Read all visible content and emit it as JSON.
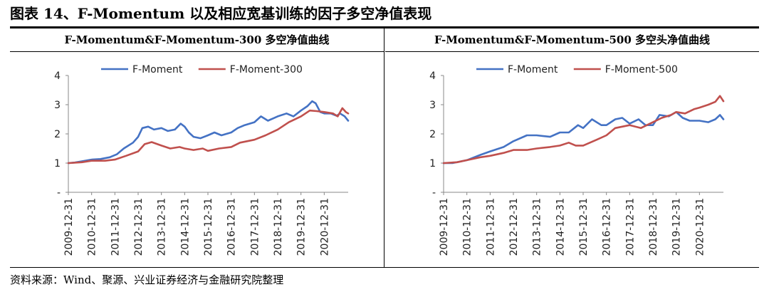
{
  "figure_title": "图表 14、F-Momentum 以及相应宽基训练的因子多空净值表现",
  "source_note": "资料来源：Wind、聚源、兴业证券经济与金融研究院整理",
  "chart_data": [
    {
      "type": "line",
      "title": "F-Momentum&F-Momentum-300 多空净值曲线",
      "xlabel": "",
      "ylabel": "",
      "ylim": [
        0,
        4
      ],
      "yticks": [
        "-",
        "1",
        "2",
        "3",
        "4"
      ],
      "x_start": 2009.92,
      "x_end": 2021.95,
      "xtick_labels": [
        "2009-12-31",
        "2010-12-31",
        "2011-12-31",
        "2012-12-31",
        "2013-12-31",
        "2014-12-31",
        "2015-12-31",
        "2016-12-31",
        "2017-12-31",
        "2018-12-31",
        "2019-12-31",
        "2020-12-31"
      ],
      "grid": false,
      "legend": "top",
      "series": [
        {
          "name": "F-Moment",
          "color": "#4472C4",
          "points": [
            [
              2009.92,
              1.0
            ],
            [
              2010.2,
              1.02
            ],
            [
              2010.5,
              1.06
            ],
            [
              2010.92,
              1.12
            ],
            [
              2011.3,
              1.14
            ],
            [
              2011.7,
              1.2
            ],
            [
              2012.0,
              1.3
            ],
            [
              2012.3,
              1.5
            ],
            [
              2012.7,
              1.7
            ],
            [
              2012.92,
              1.9
            ],
            [
              2013.1,
              2.2
            ],
            [
              2013.35,
              2.25
            ],
            [
              2013.6,
              2.15
            ],
            [
              2013.92,
              2.2
            ],
            [
              2014.2,
              2.1
            ],
            [
              2014.5,
              2.15
            ],
            [
              2014.75,
              2.35
            ],
            [
              2014.92,
              2.25
            ],
            [
              2015.1,
              2.05
            ],
            [
              2015.3,
              1.9
            ],
            [
              2015.6,
              1.85
            ],
            [
              2015.92,
              1.95
            ],
            [
              2016.2,
              2.05
            ],
            [
              2016.5,
              1.95
            ],
            [
              2016.92,
              2.05
            ],
            [
              2017.2,
              2.2
            ],
            [
              2017.5,
              2.3
            ],
            [
              2017.92,
              2.4
            ],
            [
              2018.2,
              2.6
            ],
            [
              2018.5,
              2.45
            ],
            [
              2018.92,
              2.6
            ],
            [
              2019.3,
              2.7
            ],
            [
              2019.6,
              2.6
            ],
            [
              2019.92,
              2.8
            ],
            [
              2020.2,
              2.95
            ],
            [
              2020.4,
              3.12
            ],
            [
              2020.55,
              3.05
            ],
            [
              2020.75,
              2.75
            ],
            [
              2020.92,
              2.7
            ],
            [
              2021.2,
              2.7
            ],
            [
              2021.45,
              2.62
            ],
            [
              2021.6,
              2.7
            ],
            [
              2021.8,
              2.6
            ],
            [
              2021.95,
              2.45
            ]
          ]
        },
        {
          "name": "F-Moment-300",
          "color": "#C0504D",
          "points": [
            [
              2009.92,
              1.0
            ],
            [
              2010.5,
              1.03
            ],
            [
              2010.92,
              1.08
            ],
            [
              2011.5,
              1.08
            ],
            [
              2011.92,
              1.12
            ],
            [
              2012.4,
              1.25
            ],
            [
              2012.92,
              1.4
            ],
            [
              2013.2,
              1.65
            ],
            [
              2013.5,
              1.72
            ],
            [
              2013.92,
              1.6
            ],
            [
              2014.3,
              1.5
            ],
            [
              2014.7,
              1.55
            ],
            [
              2014.92,
              1.5
            ],
            [
              2015.3,
              1.45
            ],
            [
              2015.7,
              1.5
            ],
            [
              2015.92,
              1.42
            ],
            [
              2016.4,
              1.5
            ],
            [
              2016.92,
              1.55
            ],
            [
              2017.3,
              1.7
            ],
            [
              2017.92,
              1.8
            ],
            [
              2018.4,
              1.95
            ],
            [
              2018.92,
              2.15
            ],
            [
              2019.4,
              2.4
            ],
            [
              2019.92,
              2.6
            ],
            [
              2020.3,
              2.8
            ],
            [
              2020.6,
              2.78
            ],
            [
              2020.92,
              2.75
            ],
            [
              2021.3,
              2.7
            ],
            [
              2021.5,
              2.6
            ],
            [
              2021.7,
              2.88
            ],
            [
              2021.85,
              2.75
            ],
            [
              2021.95,
              2.7
            ]
          ]
        }
      ]
    },
    {
      "type": "line",
      "title": "F-Momentum&F-Momentum-500 多空头净值曲线",
      "xlabel": "",
      "ylabel": "",
      "ylim": [
        0,
        4
      ],
      "yticks": [
        "-",
        "1",
        "2",
        "3",
        "4"
      ],
      "x_start": 2009.92,
      "x_end": 2021.95,
      "xtick_labels": [
        "2009-12-31",
        "2010-12-31",
        "2011-12-31",
        "2012-12-31",
        "2013-12-31",
        "2014-12-31",
        "2015-12-31",
        "2016-12-31",
        "2017-12-31",
        "2018-12-31",
        "2019-12-31",
        "2020-12-31"
      ],
      "grid": false,
      "legend": "top",
      "series": [
        {
          "name": "F-Moment",
          "color": "#4472C4",
          "points": [
            [
              2009.92,
              1.0
            ],
            [
              2010.3,
              1.0
            ],
            [
              2010.92,
              1.1
            ],
            [
              2011.5,
              1.28
            ],
            [
              2011.92,
              1.4
            ],
            [
              2012.5,
              1.55
            ],
            [
              2012.92,
              1.75
            ],
            [
              2013.5,
              1.95
            ],
            [
              2013.92,
              1.95
            ],
            [
              2014.5,
              1.9
            ],
            [
              2014.92,
              2.05
            ],
            [
              2015.3,
              2.05
            ],
            [
              2015.7,
              2.3
            ],
            [
              2015.92,
              2.2
            ],
            [
              2016.3,
              2.5
            ],
            [
              2016.7,
              2.3
            ],
            [
              2016.92,
              2.3
            ],
            [
              2017.3,
              2.5
            ],
            [
              2017.6,
              2.55
            ],
            [
              2017.92,
              2.35
            ],
            [
              2018.3,
              2.5
            ],
            [
              2018.6,
              2.3
            ],
            [
              2018.92,
              2.3
            ],
            [
              2019.2,
              2.65
            ],
            [
              2019.6,
              2.6
            ],
            [
              2019.92,
              2.75
            ],
            [
              2020.2,
              2.55
            ],
            [
              2020.5,
              2.45
            ],
            [
              2020.92,
              2.45
            ],
            [
              2021.3,
              2.4
            ],
            [
              2021.6,
              2.5
            ],
            [
              2021.8,
              2.65
            ],
            [
              2021.95,
              2.5
            ]
          ]
        },
        {
          "name": "F-Moment-500",
          "color": "#C0504D",
          "points": [
            [
              2009.92,
              1.0
            ],
            [
              2010.5,
              1.03
            ],
            [
              2010.92,
              1.1
            ],
            [
              2011.5,
              1.2
            ],
            [
              2011.92,
              1.25
            ],
            [
              2012.5,
              1.35
            ],
            [
              2012.92,
              1.45
            ],
            [
              2013.5,
              1.45
            ],
            [
              2013.92,
              1.5
            ],
            [
              2014.5,
              1.55
            ],
            [
              2014.92,
              1.6
            ],
            [
              2015.3,
              1.7
            ],
            [
              2015.6,
              1.6
            ],
            [
              2015.92,
              1.6
            ],
            [
              2016.5,
              1.8
            ],
            [
              2016.92,
              1.95
            ],
            [
              2017.3,
              2.2
            ],
            [
              2017.92,
              2.3
            ],
            [
              2018.4,
              2.2
            ],
            [
              2018.92,
              2.4
            ],
            [
              2019.3,
              2.55
            ],
            [
              2019.7,
              2.65
            ],
            [
              2019.92,
              2.75
            ],
            [
              2020.3,
              2.7
            ],
            [
              2020.7,
              2.85
            ],
            [
              2020.92,
              2.9
            ],
            [
              2021.3,
              3.0
            ],
            [
              2021.6,
              3.1
            ],
            [
              2021.8,
              3.3
            ],
            [
              2021.95,
              3.12
            ]
          ]
        }
      ]
    }
  ]
}
